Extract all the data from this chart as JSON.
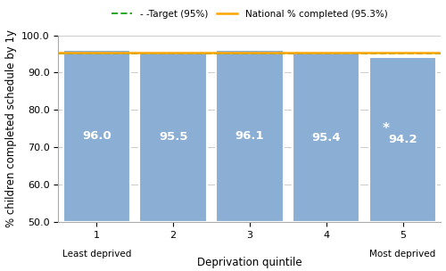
{
  "categories": [
    "1",
    "2",
    "3",
    "4",
    "5"
  ],
  "top_labels": [
    "Least deprived",
    "",
    "",
    "",
    "Most deprived"
  ],
  "values": [
    96.0,
    95.5,
    96.1,
    95.4,
    94.2
  ],
  "bar_color": "#8BAFD4",
  "bar_edgecolor": "#ffffff",
  "target_line": 95.0,
  "national_line": 95.3,
  "target_label": "- -Target (95%)",
  "national_label": "National % completed (95.3%)",
  "target_color": "#22AA22",
  "national_color": "#FFA500",
  "ylim": [
    50.0,
    100.0
  ],
  "yticks": [
    50.0,
    60.0,
    70.0,
    80.0,
    90.0,
    100.0
  ],
  "ylabel": "% children completed schedule by 1y",
  "xlabel": "Deprivation quintile",
  "value_labels": [
    "96.0",
    "95.5",
    "96.1",
    "95.4",
    "94.2"
  ],
  "asterisk_bar": 4,
  "label_fontsize": 8.5,
  "axis_fontsize": 8,
  "value_label_fontsize": 9.5,
  "background_color": "#ffffff",
  "plot_bg_color": "#ffffff",
  "grid_color": "#cccccc",
  "bar_width": 0.88
}
